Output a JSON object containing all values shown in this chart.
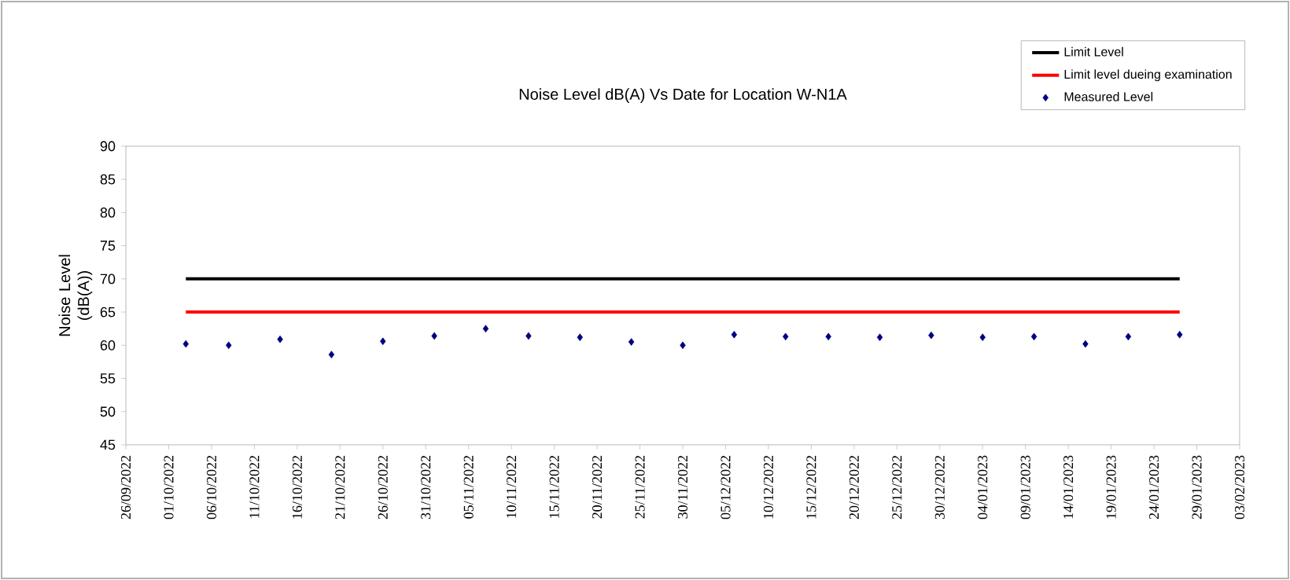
{
  "chart_data": {
    "type": "scatter",
    "title": "Noise Level dB(A) Vs Date for Location W-N1A",
    "ylabel": "Noise Level (dB(A))",
    "xlim": [
      "2022-09-26",
      "2023-02-03"
    ],
    "ylim": [
      45,
      90
    ],
    "yticks": [
      45,
      50,
      55,
      60,
      65,
      70,
      75,
      80,
      85,
      90
    ],
    "xticks": [
      {
        "value": "2022-09-26",
        "label": "26/09/2022"
      },
      {
        "value": "2022-10-01",
        "label": "01/10/2022"
      },
      {
        "value": "2022-10-06",
        "label": "06/10/2022"
      },
      {
        "value": "2022-10-11",
        "label": "11/10/2022"
      },
      {
        "value": "2022-10-16",
        "label": "16/10/2022"
      },
      {
        "value": "2022-10-21",
        "label": "21/10/2022"
      },
      {
        "value": "2022-10-26",
        "label": "26/10/2022"
      },
      {
        "value": "2022-10-31",
        "label": "31/10/2022"
      },
      {
        "value": "2022-11-05",
        "label": "05/11/2022"
      },
      {
        "value": "2022-11-10",
        "label": "10/11/2022"
      },
      {
        "value": "2022-11-15",
        "label": "15/11/2022"
      },
      {
        "value": "2022-11-20",
        "label": "20/11/2022"
      },
      {
        "value": "2022-11-25",
        "label": "25/11/2022"
      },
      {
        "value": "2022-11-30",
        "label": "30/11/2022"
      },
      {
        "value": "2022-12-05",
        "label": "05/12/2022"
      },
      {
        "value": "2022-12-10",
        "label": "10/12/2022"
      },
      {
        "value": "2022-12-15",
        "label": "15/12/2022"
      },
      {
        "value": "2022-12-20",
        "label": "20/12/2022"
      },
      {
        "value": "2022-12-25",
        "label": "25/12/2022"
      },
      {
        "value": "2022-12-30",
        "label": "30/12/2022"
      },
      {
        "value": "2023-01-04",
        "label": "04/01/2023"
      },
      {
        "value": "2023-01-09",
        "label": "09/01/2023"
      },
      {
        "value": "2023-01-14",
        "label": "14/01/2023"
      },
      {
        "value": "2023-01-19",
        "label": "19/01/2023"
      },
      {
        "value": "2023-01-24",
        "label": "24/01/2023"
      },
      {
        "value": "2023-01-29",
        "label": "29/01/2023"
      },
      {
        "value": "2023-02-03",
        "label": "03/02/2023"
      }
    ],
    "legend": "top right",
    "grid": false,
    "series": [
      {
        "name": "Limit Level",
        "type": "line",
        "line_style": "solid",
        "color": "#000000",
        "x": [
          "2022-10-03",
          "2023-01-27"
        ],
        "values": [
          70,
          70
        ]
      },
      {
        "name": "Limit level dueing examination",
        "type": "line",
        "line_style": "solid",
        "color": "#ff0000",
        "x": [
          "2022-10-03",
          "2023-01-27"
        ],
        "values": [
          65,
          65
        ]
      },
      {
        "name": "Measured Level",
        "marker": "diamond",
        "color": "#000080",
        "x": [
          "2022-10-03",
          "2022-10-08",
          "2022-10-14",
          "2022-10-20",
          "2022-10-26",
          "2022-11-01",
          "2022-11-07",
          "2022-11-12",
          "2022-11-18",
          "2022-11-24",
          "2022-11-30",
          "2022-12-06",
          "2022-12-12",
          "2022-12-17",
          "2022-12-23",
          "2022-12-29",
          "2023-01-04",
          "2023-01-10",
          "2023-01-16",
          "2023-01-21",
          "2023-01-27"
        ],
        "values": [
          60.2,
          60.0,
          60.9,
          58.6,
          60.6,
          61.4,
          62.5,
          61.4,
          61.2,
          60.5,
          60.0,
          61.6,
          61.3,
          61.3,
          61.2,
          61.5,
          61.2,
          61.3,
          60.2,
          61.3,
          61.6
        ]
      }
    ]
  }
}
